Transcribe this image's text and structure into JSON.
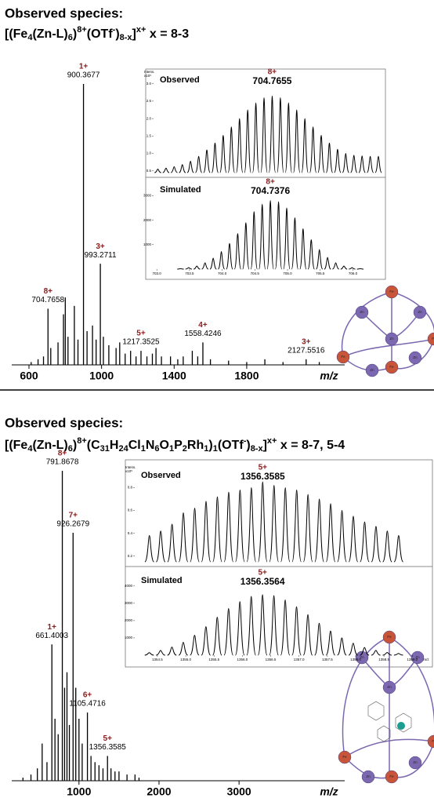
{
  "panels": [
    {
      "title": "Observed species:",
      "formula": [
        {
          "text": "[(Fe"
        },
        {
          "text": "4",
          "pos": "sub"
        },
        {
          "text": "(Zn-L)"
        },
        {
          "text": "6",
          "pos": "sub"
        },
        {
          "text": ")"
        },
        {
          "text": "8+",
          "pos": "sup"
        },
        {
          "text": "(OTf"
        },
        {
          "text": "-",
          "pos": "sup"
        },
        {
          "text": ")"
        },
        {
          "text": "8-x",
          "pos": "sub"
        },
        {
          "text": "]"
        },
        {
          "text": "x+",
          "pos": "sup"
        },
        {
          "text": " x = 8-3"
        }
      ],
      "diagram": {
        "nodes": [
          "Fe",
          "Zn",
          "Zn",
          "Zn",
          "Fe",
          "Zn",
          "Fe",
          "Zn",
          "Fe"
        ]
      }
    },
    {
      "title": "Observed species:",
      "formula": [
        {
          "text": "[(Fe"
        },
        {
          "text": "4",
          "pos": "sub"
        },
        {
          "text": "(Zn-L)"
        },
        {
          "text": "6",
          "pos": "sub"
        },
        {
          "text": ")"
        },
        {
          "text": "8+",
          "pos": "sup"
        },
        {
          "text": "(C"
        },
        {
          "text": "31",
          "pos": "sub"
        },
        {
          "text": "H"
        },
        {
          "text": "24",
          "pos": "sub"
        },
        {
          "text": "Cl"
        },
        {
          "text": "1",
          "pos": "sub"
        },
        {
          "text": "N"
        },
        {
          "text": "6",
          "pos": "sub"
        },
        {
          "text": "O"
        },
        {
          "text": "1",
          "pos": "sub"
        },
        {
          "text": "P"
        },
        {
          "text": "2",
          "pos": "sub"
        },
        {
          "text": "Rh"
        },
        {
          "text": "1",
          "pos": "sub"
        },
        {
          "text": ")"
        },
        {
          "text": "1",
          "pos": "sub"
        },
        {
          "text": "(OTf"
        },
        {
          "text": "-",
          "pos": "sup"
        },
        {
          "text": ")"
        },
        {
          "text": "8-x",
          "pos": "sub"
        },
        {
          "text": "]"
        },
        {
          "text": "x+",
          "pos": "sup"
        },
        {
          "text": " x = 8-7, 5-4"
        }
      ],
      "diagram": {
        "nodes": [
          "Fe",
          "Zn",
          "Zn",
          "Zn",
          "Fe",
          "Zn",
          "Fe",
          "Zn",
          "Fe"
        ]
      }
    }
  ],
  "chart_data": [
    {
      "type": "stick",
      "xlabel": "m/z",
      "xlim": [
        505,
        2340
      ],
      "ylim": [
        0,
        100
      ],
      "xticks": [
        600,
        1000,
        1400,
        1800
      ],
      "x": [
        612,
        650,
        680,
        704.7658,
        720,
        760,
        790,
        800,
        815,
        850,
        870,
        900.3677,
        920,
        950,
        970,
        993.2711,
        1010,
        1040,
        1080,
        1100,
        1130,
        1160,
        1190,
        1217.3525,
        1250,
        1280,
        1300,
        1330,
        1380,
        1420,
        1450,
        1500,
        1530,
        1558.4246,
        1600,
        1700,
        1800,
        1900,
        2000,
        2127.5516,
        2200
      ],
      "values": [
        1,
        2,
        3,
        20,
        6,
        8,
        18,
        24,
        10,
        21,
        9,
        100,
        12,
        14,
        9,
        36,
        10,
        7,
        6,
        8,
        4,
        5,
        3,
        5,
        3,
        4,
        6,
        3,
        3,
        2,
        3,
        5,
        3,
        8,
        2,
        1.5,
        1,
        2,
        1,
        2,
        1
      ],
      "annotations": [
        {
          "charge": "8+",
          "x": 704.7658
        },
        {
          "charge": "1+",
          "x": 900.3677
        },
        {
          "charge": "3+",
          "x": 993.2711
        },
        {
          "charge": "5+",
          "x": 1217.3525
        },
        {
          "charge": "4+",
          "x": 1558.4246
        },
        {
          "charge": "3+",
          "x": 2127.5516
        }
      ]
    },
    {
      "type": "profile",
      "label": "Observed",
      "ylabel": "Intens.",
      "yunit": "x10⁵",
      "xlim": [
        702.95,
        706.45
      ],
      "ylim": [
        0.45,
        3.15
      ],
      "yticks": [
        0.5,
        {
          "value": 1,
          "label": "1.0"
        },
        1.5,
        {
          "value": 2,
          "label": "2.0"
        },
        2.5,
        {
          "value": 3,
          "label": "3.0"
        }
      ],
      "x": [
        703.0155,
        703.1405,
        703.2655,
        703.3905,
        703.5155,
        703.6405,
        703.7655,
        703.8905,
        704.0155,
        704.1405,
        704.2655,
        704.3905,
        704.5155,
        704.6405,
        704.7655,
        704.8905,
        705.0155,
        705.1405,
        705.2655,
        705.3905,
        705.5155,
        705.6405,
        705.7655,
        705.8905,
        706.0155,
        706.1405,
        706.2655,
        706.3905
      ],
      "values": [
        0.55,
        0.58,
        0.62,
        0.68,
        0.78,
        0.92,
        1.1,
        1.3,
        1.52,
        1.76,
        2.0,
        2.25,
        2.45,
        2.6,
        2.65,
        2.6,
        2.45,
        2.25,
        2.0,
        1.76,
        1.52,
        1.3,
        1.12,
        1.0,
        0.95,
        0.93,
        0.92,
        0.92
      ],
      "annotations": [
        {
          "charge": "8+",
          "x": 704.7655
        }
      ]
    },
    {
      "type": "profile",
      "label": "Simulated",
      "xlim": [
        702.95,
        706.45
      ],
      "ylim": [
        0,
        3300
      ],
      "yticks": [
        1000,
        2000,
        3000
      ],
      "xticks": [
        {
          "value": 703,
          "label": "703.0"
        },
        703.5,
        {
          "value": 704,
          "label": "704.0"
        },
        704.5,
        {
          "value": 705,
          "label": "705.0"
        },
        705.5,
        {
          "value": 706,
          "label": "706.0"
        }
      ],
      "x": [
        703.3626,
        703.4876,
        703.6126,
        703.7376,
        703.8626,
        703.9876,
        704.1126,
        704.2376,
        704.3626,
        704.4876,
        704.6126,
        704.7376,
        704.8626,
        704.9876,
        705.1126,
        705.2376,
        705.3626,
        705.4876,
        705.6126,
        705.7376,
        705.8626,
        705.9876,
        706.1126
      ],
      "values": [
        20,
        60,
        130,
        260,
        450,
        720,
        1050,
        1450,
        1900,
        2350,
        2650,
        2800,
        2750,
        2500,
        2100,
        1650,
        1200,
        800,
        480,
        260,
        130,
        60,
        20
      ],
      "annotations": [
        {
          "charge": "8+",
          "x": 704.7376
        }
      ]
    },
    {
      "type": "stick",
      "xlabel": "m/z",
      "xlim": [
        160,
        4320
      ],
      "ylim": [
        0,
        100
      ],
      "xticks": [
        1000,
        2000,
        3000
      ],
      "x": [
        300,
        400,
        480,
        540,
        600,
        661.4003,
        700,
        740,
        791.8678,
        820,
        850,
        880,
        926.2679,
        960,
        1000,
        1040,
        1105.4716,
        1150,
        1200,
        1250,
        1300,
        1356.3585,
        1400,
        1450,
        1500,
        1600,
        1700,
        1750
      ],
      "values": [
        1,
        2,
        4,
        12,
        6,
        44,
        20,
        15,
        100,
        30,
        35,
        18,
        80,
        30,
        20,
        12,
        22,
        8,
        6,
        5,
        4,
        8,
        4,
        3,
        3,
        2,
        2,
        1
      ],
      "annotations": [
        {
          "charge": "8+",
          "x": 791.8678
        },
        {
          "charge": "7+",
          "x": 926.2679
        },
        {
          "charge": "1+",
          "x": 661.4003
        },
        {
          "charge": "6+",
          "x": 1105.4716
        },
        {
          "charge": "5+",
          "x": 1356.3585
        }
      ]
    },
    {
      "type": "profile",
      "label": "Observed",
      "ylabel": "Intens.",
      "yunit": "x10⁵",
      "xlim": [
        1354.1,
        1359.3
      ],
      "ylim": [
        0.15,
        0.92
      ],
      "yticks": [
        0.2,
        0.4,
        0.6,
        0.8
      ],
      "x": [
        1354.3585,
        1354.5585,
        1354.7585,
        1354.9585,
        1355.1585,
        1355.3585,
        1355.5585,
        1355.7585,
        1355.9585,
        1356.1585,
        1356.3585,
        1356.5585,
        1356.7585,
        1356.9585,
        1357.1585,
        1357.3585,
        1357.5585,
        1357.7585,
        1357.9585,
        1358.1585,
        1358.3585,
        1358.5585,
        1358.7585
      ],
      "values": [
        0.38,
        0.42,
        0.48,
        0.58,
        0.62,
        0.68,
        0.72,
        0.76,
        0.78,
        0.8,
        0.85,
        0.82,
        0.8,
        0.78,
        0.74,
        0.7,
        0.66,
        0.6,
        0.55,
        0.5,
        0.46,
        0.42,
        0.38
      ],
      "annotations": [
        {
          "charge": "5+",
          "x": 1356.3585
        }
      ]
    },
    {
      "type": "profile",
      "label": "Simulated",
      "xlabel": "m/z",
      "xlim": [
        1354.1,
        1359.3
      ],
      "ylim": [
        0,
        4400
      ],
      "yticks": [
        1000,
        2000,
        3000,
        4000
      ],
      "xticks": [
        1354.5,
        {
          "value": 1355,
          "label": "1355.0"
        },
        1355.5,
        {
          "value": 1356,
          "label": "1356.0"
        },
        1356.5,
        {
          "value": 1357,
          "label": "1357.0"
        },
        1357.5,
        {
          "value": 1358,
          "label": "1358.0"
        },
        1358.5,
        {
          "value": 1359,
          "label": "1359.0"
        }
      ],
      "x": [
        1354.3564,
        1354.5564,
        1354.7564,
        1354.9564,
        1355.1564,
        1355.3564,
        1355.5564,
        1355.7564,
        1355.9564,
        1356.1564,
        1356.3564,
        1356.5564,
        1356.7564,
        1356.9564,
        1357.1564,
        1357.3564,
        1357.5564,
        1357.7564,
        1357.9564,
        1358.1564,
        1358.3564,
        1358.5564,
        1358.7564
      ],
      "values": [
        150,
        280,
        470,
        750,
        1150,
        1650,
        2200,
        2700,
        3100,
        3400,
        3500,
        3450,
        3200,
        2800,
        2350,
        1850,
        1400,
        1000,
        700,
        450,
        280,
        160,
        100
      ],
      "annotations": [
        {
          "charge": "5+",
          "x": 1356.3564
        }
      ]
    }
  ]
}
